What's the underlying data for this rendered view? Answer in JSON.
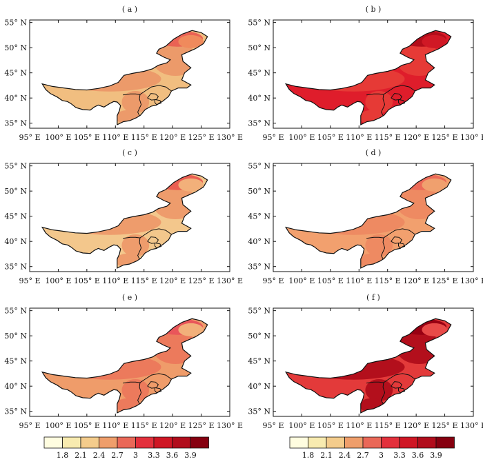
{
  "panels": [
    {
      "label": "( a )",
      "fills": [
        "#f1be80",
        "#f5d898",
        "#ec9a6a",
        "#ea6254",
        "#f08a5c"
      ]
    },
    {
      "label": "( b )",
      "fills": [
        "#df1d2b",
        "#c9121f",
        "#e63a36",
        "#b30d1a",
        "#d01825"
      ]
    },
    {
      "label": "( c )",
      "fills": [
        "#f3c78c",
        "#fbf0b5",
        "#ee9c6c",
        "#ea5e52",
        "#f2b07a"
      ]
    },
    {
      "label": "( d )",
      "fills": [
        "#f2a06e",
        "#f4bd84",
        "#ee8a62",
        "#ec6a58",
        "#f0a06e"
      ]
    },
    {
      "label": "( e )",
      "fills": [
        "#ef9c6a",
        "#f3c384",
        "#ec7a5c",
        "#e9565a",
        "#f2b07a"
      ]
    },
    {
      "label": "( f )",
      "fills": [
        "#e33a3a",
        "#d0202c",
        "#b30f1c",
        "#980012",
        "#e84a48"
      ]
    }
  ],
  "axes": {
    "lat_ticks": [
      "35° N",
      "40° N",
      "45° N",
      "50° N",
      "55° N"
    ],
    "lon_ticks": [
      "95° E",
      "100° E",
      "105° E",
      "110° E",
      "115° E",
      "120° E",
      "125° E",
      "130° E"
    ]
  },
  "colorbar": {
    "levels": [
      "1.8",
      "2.1",
      "2.4",
      "2.7",
      "3",
      "3.3",
      "3.6",
      "3.9"
    ],
    "colors": [
      "#fffde0",
      "#f8ebb0",
      "#f4cc8c",
      "#ef9e6b",
      "#ea6858",
      "#e3303c",
      "#cf1624",
      "#b10d1c",
      "#860010"
    ]
  }
}
